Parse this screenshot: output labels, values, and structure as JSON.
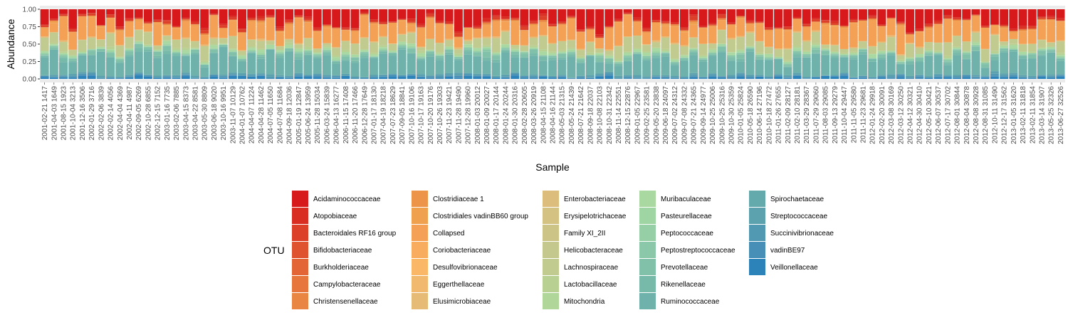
{
  "chart_data": {
    "type": "bar",
    "stacked": true,
    "xlabel": "Sample",
    "ylabel": "Abundance",
    "ylim": [
      0,
      1
    ],
    "yticks": [
      "0.00",
      "0.25",
      "0.50",
      "0.75",
      "1.00"
    ],
    "grid": true,
    "legend_title": "OTU",
    "legend_position": "bottom",
    "categories": [
      "2001-02-21 1417",
      "2001-04-03 1649",
      "2001-08-15 1923",
      "2001-10-04 3213",
      "2001-12-16 3506",
      "2002-01-29 3716",
      "2002-02-06 3839",
      "2002-02-14 4056",
      "2002-04-04 4369",
      "2002-04-11 4987",
      "2002-09-05 6269",
      "2002-10-28 6855",
      "2002-12-15 7152",
      "2003-01-16 7735",
      "2003-02-06 7885",
      "2003-04-15 8373",
      "2003-04-22 8581",
      "2003-05-30 8809",
      "2003-06-18 9020",
      "2003-10-16 9951",
      "2003-11-07 10129",
      "2004-01-07 10762",
      "2004-04-07 11224",
      "2004-04-28 11462",
      "2004-07-05 11650",
      "2004-07-08 11684",
      "2004-09-18 12036",
      "2005-01-19 12847",
      "2005-06-24 13959",
      "2005-11-28 15034",
      "2006-03-24 15839",
      "2006-04-13 16277",
      "2006-11-15 17408",
      "2006-11-20 17466",
      "2006-12-28 17649",
      "2007-01-17 18130",
      "2007-04-19 18218",
      "2007-07-23 18629",
      "2007-09-05 18841",
      "2007-10-16 19106",
      "2007-10-17 19163",
      "2007-10-20 19176",
      "2007-10-26 19303",
      "2007-11-23 19421",
      "2007-11-28 19490",
      "2007-12-28 19960",
      "2008-01-03 20012",
      "2008-01-09 20027",
      "2008-01-17 20144",
      "2008-01-24 20244",
      "2008-01-30 20316",
      "2008-02-28 20605",
      "2008-03-26 20919",
      "2008-04-15 21108",
      "2008-04-16 21144",
      "2008-05-03 21315",
      "2008-05-24 21439",
      "2008-07-21 21642",
      "2008-09-18 22037",
      "2008-10-08 22103",
      "2008-10-31 22342",
      "2008-11-14 22551",
      "2008-12-15 22876",
      "2009-01-05 22967",
      "2009-02-25 23581",
      "2009-05-20 23838",
      "2009-06-18 24097",
      "2009-07-02 24312",
      "2009-07-08 24332",
      "2009-07-21 24365",
      "2009-09-14 24977",
      "2009-10-25 25006",
      "2009-10-25 25316",
      "2009-10-30 25359",
      "2010-01-05 25824",
      "2010-05-18 26590",
      "2010-06-14 27196",
      "2010-10-18 27472",
      "2011-01-26 27655",
      "2011-02-09 28127",
      "2011-02-10 28181",
      "2011-03-29 28367",
      "2011-07-29 29060",
      "2011-08-03 29085",
      "2011-09-13 29279",
      "2011-10-04 29447",
      "2011-11-05 29580",
      "2011-11-23 29681",
      "2012-01-24 29918",
      "2012-02-20 30091",
      "2012-03-08 30169",
      "2012-03-12 30250",
      "2012-04-12 30321",
      "2012-04-30 30410",
      "2012-05-10 30421",
      "2012-06-07 30537",
      "2012-07-17 30702",
      "2012-08-01 30844",
      "2012-08-04 30878",
      "2012-08-08 30928",
      "2012-08-31 31085",
      "2012-10-11 31490",
      "2012-12-17 31562",
      "2013-01-05 31620",
      "2013-02-11 31818",
      "2013-02-11 31854",
      "2013-03-14 31907",
      "2013-05-25 32326",
      "2013-06-27 32526"
    ],
    "series": [
      {
        "name": "Acidaminococcaceae",
        "color": "#d7191c"
      },
      {
        "name": "Atopobiaceae",
        "color": "#da2d22"
      },
      {
        "name": "Bacteroidales RF16 group",
        "color": "#dd4029"
      },
      {
        "name": "Bifidobacteriaceae",
        "color": "#e0532f"
      },
      {
        "name": "Burkholderiaceae",
        "color": "#e36535"
      },
      {
        "name": "Campylobacteraceae",
        "color": "#e6763c"
      },
      {
        "name": "Christensenellaceae",
        "color": "#e98642"
      },
      {
        "name": "Clostridiaceae 1",
        "color": "#ec9448"
      },
      {
        "name": "Clostridiales vadinBB60 group",
        "color": "#f0a14e"
      },
      {
        "name": "Collapsed",
        "color": "#f4a055"
      },
      {
        "name": "Coriobacteriaceae",
        "color": "#f7ac5e"
      },
      {
        "name": "Desulfovibrionaceae",
        "color": "#fab766"
      },
      {
        "name": "Eggerthellaceae",
        "color": "#f0b96e"
      },
      {
        "name": "Elusimicrobiaceae",
        "color": "#e6bb75"
      },
      {
        "name": "Enterobacteriaceae",
        "color": "#dcbd7c"
      },
      {
        "name": "Erysipelotrichaceae",
        "color": "#d4c283"
      },
      {
        "name": "Family XI_2II",
        "color": "#ccc487"
      },
      {
        "name": "Helicobacteraceae",
        "color": "#c4c88c"
      },
      {
        "name": "Lachnospiraceae",
        "color": "#c1cb8f"
      },
      {
        "name": "Lactobacillaceae",
        "color": "#b8d193"
      },
      {
        "name": "Mitochondria",
        "color": "#b0d699"
      },
      {
        "name": "Muribaculaceae",
        "color": "#a9d9a0"
      },
      {
        "name": "Pasteurellaceae",
        "color": "#9fd5a3"
      },
      {
        "name": "Peptococcaceae",
        "color": "#96cfa6"
      },
      {
        "name": "Peptostreptococcaceae",
        "color": "#8bc8a9"
      },
      {
        "name": "Prevotellaceae",
        "color": "#81c1aa"
      },
      {
        "name": "Rikenellaceae",
        "color": "#77baaa"
      },
      {
        "name": "Ruminococcaceae",
        "color": "#6eb2ab"
      },
      {
        "name": "Spirochaetaceae",
        "color": "#64aaac"
      },
      {
        "name": "Streptococcaceae",
        "color": "#5ba1ae"
      },
      {
        "name": "Succinivibrionaceae",
        "color": "#5198b2"
      },
      {
        "name": "vadinBE97",
        "color": "#478fb6"
      },
      {
        "name": "Veillonellaceae",
        "color": "#2b83ba"
      }
    ],
    "composition_note_hidden": null
  }
}
